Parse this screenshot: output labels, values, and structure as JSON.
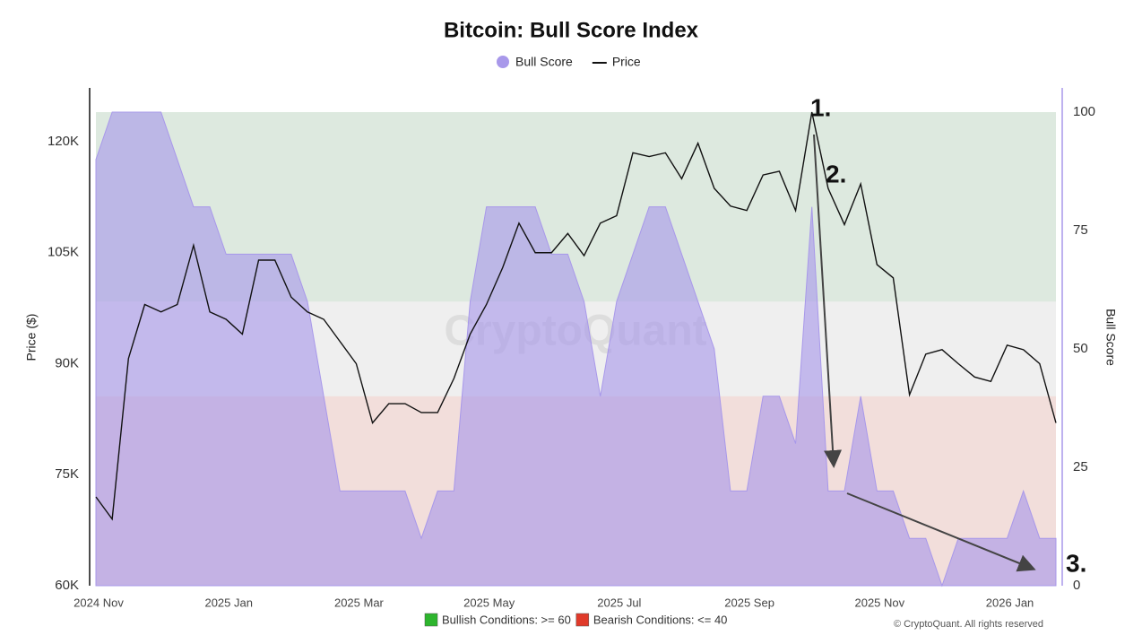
{
  "chart_data": {
    "type": "combo",
    "title": "Bitcoin: Bull Score Index",
    "y_label": "Price ($)",
    "y2_label": "Bull Score",
    "watermark": "CryptoQuant",
    "credit": "© CryptoQuant. All rights reserved",
    "annotations": [
      "1.",
      "2.",
      "3."
    ],
    "plot_background": "#efefef",
    "bands": [
      {
        "label": "Bullish Conditions: >= 60",
        "from": 60,
        "to": 100,
        "color": "#2db52d",
        "fill": "#dde9df"
      },
      {
        "label": "Bearish Conditions: <= 40",
        "from": 0,
        "to": 40,
        "color": "#e03a2a",
        "fill": "#f2dedb"
      }
    ],
    "categories": [
      "2024 Nov",
      null,
      null,
      null,
      null,
      null,
      null,
      null,
      "2025 Jan",
      null,
      null,
      null,
      null,
      null,
      null,
      null,
      "2025 Mar",
      null,
      null,
      null,
      null,
      null,
      null,
      null,
      "2025 May",
      null,
      null,
      null,
      null,
      null,
      null,
      null,
      "2025 Jul",
      null,
      null,
      null,
      null,
      null,
      null,
      null,
      "2025 Sep",
      null,
      null,
      null,
      null,
      null,
      null,
      null,
      "2025 Nov",
      null,
      null,
      null,
      null,
      null,
      null,
      null,
      "2026 Jan",
      null,
      null,
      null
    ],
    "series": [
      {
        "name": "Bull Score",
        "type": "area",
        "axis": "y2",
        "color": "#a898ea",
        "values": [
          90,
          100,
          100,
          100,
          100,
          90,
          80,
          80,
          70,
          70,
          70,
          70,
          70,
          60,
          40,
          20,
          20,
          20,
          20,
          20,
          10,
          20,
          20,
          60,
          80,
          80,
          80,
          80,
          70,
          70,
          60,
          40,
          60,
          70,
          80,
          80,
          70,
          60,
          50,
          20,
          20,
          40,
          40,
          30,
          80,
          20,
          20,
          40,
          20,
          20,
          10,
          10,
          0,
          10,
          10,
          10,
          10,
          20,
          10,
          10
        ]
      },
      {
        "name": "Price",
        "type": "line",
        "axis": "y",
        "color": "#111111",
        "values": [
          72000,
          69000,
          90700,
          98000,
          97000,
          98000,
          106000,
          97000,
          96000,
          94000,
          104000,
          104000,
          99000,
          97000,
          96000,
          93000,
          90000,
          82000,
          84600,
          84600,
          83400,
          83400,
          88000,
          94000,
          98000,
          103000,
          109000,
          105000,
          105000,
          107600,
          104600,
          109000,
          110000,
          118500,
          118000,
          118500,
          115000,
          119800,
          113700,
          111300,
          110700,
          115500,
          116000,
          110700,
          124000,
          113700,
          108800,
          114300,
          103400,
          101600,
          85800,
          91300,
          91900,
          90000,
          88200,
          87600,
          92500,
          91900,
          90000,
          82000
        ]
      }
    ],
    "ylim": [
      60000,
      124000
    ],
    "yticks": [
      {
        "value": 60000,
        "label": "60K"
      },
      {
        "value": 75000,
        "label": "75K"
      },
      {
        "value": 90000,
        "label": "90K"
      },
      {
        "value": 105000,
        "label": "105K"
      },
      {
        "value": 120000,
        "label": "120K"
      }
    ],
    "y2lim": [
      0,
      100
    ],
    "y2ticks": [
      0,
      25,
      50,
      75,
      100
    ]
  }
}
